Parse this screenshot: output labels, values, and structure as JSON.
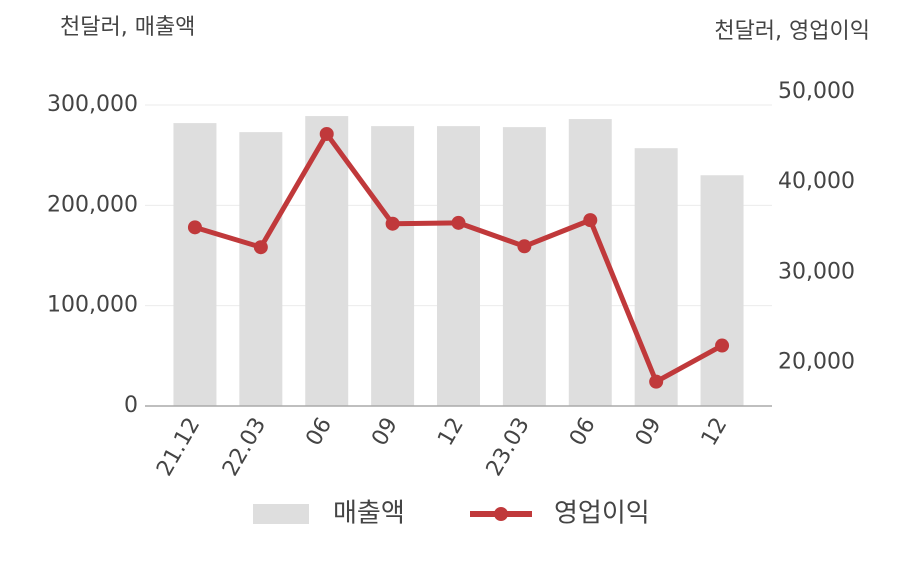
{
  "chart_data": {
    "type": "bar-line",
    "y_label": "천달러, 매출액",
    "y2_label": "천달러, 영업이익",
    "categories": [
      "21.12",
      "22.03",
      "06",
      "09",
      "12",
      "23.03",
      "06",
      "09",
      "12"
    ],
    "series": [
      {
        "name": "매출액",
        "type": "bar",
        "color": "#dedede",
        "values": [
          282000,
          273000,
          289000,
          279000,
          279000,
          278000,
          286000,
          257000,
          230000
        ]
      },
      {
        "name": "영업이익",
        "type": "line",
        "axis": "y2",
        "color": "#c0393b",
        "values": [
          35000,
          32800,
          45350,
          35400,
          35500,
          32900,
          35800,
          17900,
          21900
        ]
      }
    ],
    "ylim": [
      0,
      313000
    ],
    "yticks": [
      {
        "value": 0,
        "label": "0"
      },
      {
        "value": 100000,
        "label": "100,000"
      },
      {
        "value": 200000,
        "label": "200,000"
      },
      {
        "value": 300000,
        "label": "300,000"
      }
    ],
    "y2lim": [
      15200,
      50000
    ],
    "y2ticks": [
      {
        "value": 20000,
        "label": "20,000"
      },
      {
        "value": 30000,
        "label": "30,000"
      },
      {
        "value": 40000,
        "label": "40,000"
      },
      {
        "value": 50000,
        "label": "50,000"
      }
    ],
    "grid": true
  }
}
